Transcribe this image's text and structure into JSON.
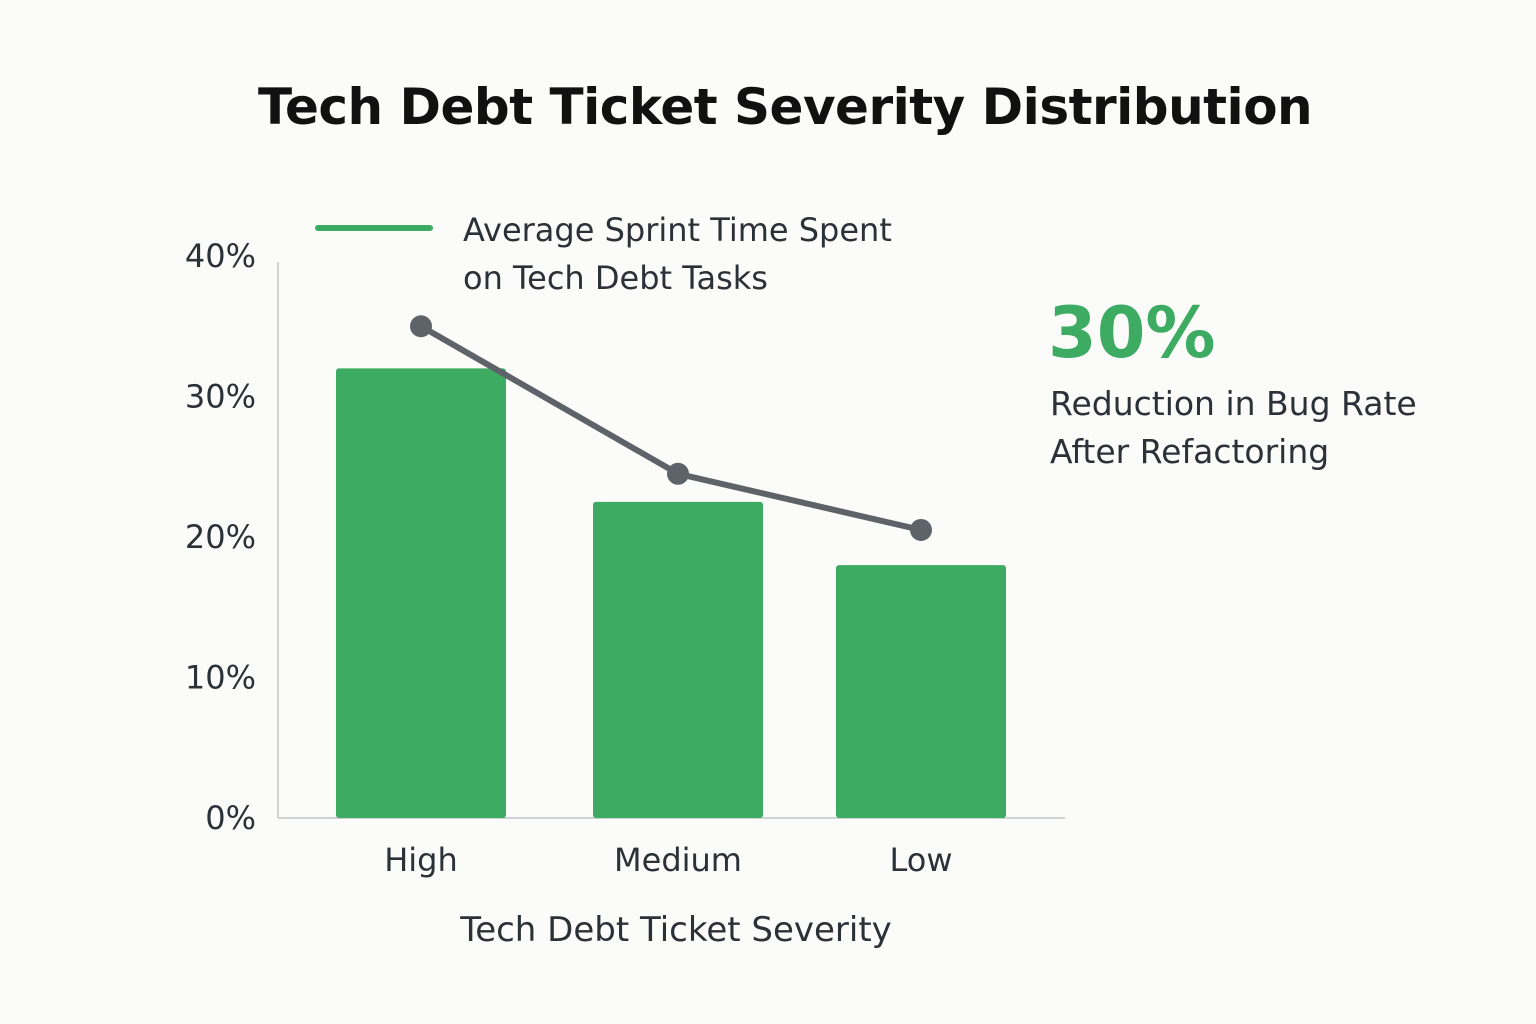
{
  "title": "Tech Debt Ticket Severity Distribution",
  "legend": {
    "line1": "Average Sprint Time Spent",
    "line2": "on Tech Debt Tasks"
  },
  "callout": {
    "value": "30%",
    "line1": "Reduction in Bug Rate",
    "line2": "After Refactoring"
  },
  "colors": {
    "bar": "#3dab61",
    "line": "#5d6368",
    "accent": "#3dab61",
    "axis": "#cfd2d4",
    "text": "#2c3138"
  },
  "chart_data": {
    "type": "bar",
    "title": "Tech Debt Ticket Severity Distribution",
    "xlabel": "Tech Debt Ticket Severity",
    "ylabel": "",
    "categories": [
      "High",
      "Medium",
      "Low"
    ],
    "yticks": [
      "0%",
      "10%",
      "20%",
      "30%",
      "40%"
    ],
    "ylim": [
      0,
      40
    ],
    "grid": false,
    "legend_position": "top",
    "series": [
      {
        "type": "bar",
        "values": [
          32,
          22.5,
          18
        ]
      },
      {
        "type": "line",
        "name": "Average Sprint Time Spent on Tech Debt Tasks",
        "values": [
          35,
          24.5,
          20.5
        ]
      }
    ]
  }
}
